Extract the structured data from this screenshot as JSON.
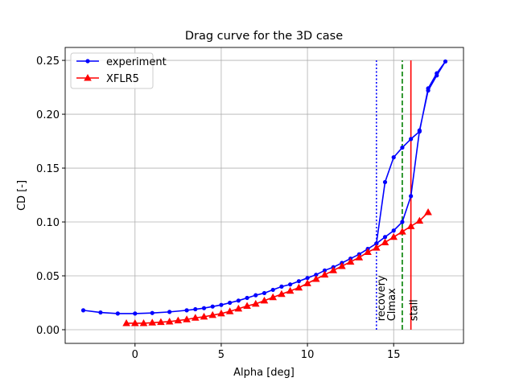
{
  "chart_data": {
    "type": "line",
    "title": "Drag curve for the 3D case",
    "xlabel": "Alpha [deg]",
    "ylabel": "CD [-]",
    "xlim": [
      -4.05,
      19.05
    ],
    "ylim": [
      -0.0127,
      0.262
    ],
    "xticks": [
      0,
      5,
      10,
      15
    ],
    "yticks": [
      {
        "value": 0,
        "label": "0.00"
      },
      {
        "value": 0.05,
        "label": "0.05"
      },
      {
        "value": 0.1,
        "label": "0.10"
      },
      {
        "value": 0.15,
        "label": "0.15"
      },
      {
        "value": 0.2,
        "label": "0.20"
      },
      {
        "value": 0.25,
        "label": "0.25"
      }
    ],
    "grid": true,
    "legend": "upper left",
    "series": [
      {
        "name": "experiment",
        "color": "#0000ff",
        "marker": "circle",
        "x": [
          -3,
          -2,
          -1,
          0,
          1,
          2,
          3,
          3.5,
          4,
          4.5,
          5,
          5.5,
          6,
          6.5,
          7,
          7.5,
          8,
          8.5,
          9,
          9.5,
          10,
          10.5,
          11,
          11.5,
          12,
          12.5,
          13,
          13.5,
          14,
          14.5,
          15,
          15.5,
          16,
          16.5,
          17,
          17.5,
          18,
          17.5,
          17,
          16.5,
          16,
          15.5,
          15,
          14.5,
          14
        ],
        "values": [
          0.018,
          0.016,
          0.015,
          0.015,
          0.0155,
          0.0165,
          0.018,
          0.019,
          0.02,
          0.0215,
          0.023,
          0.025,
          0.027,
          0.0295,
          0.032,
          0.034,
          0.037,
          0.04,
          0.042,
          0.045,
          0.048,
          0.051,
          0.055,
          0.058,
          0.062,
          0.066,
          0.07,
          0.075,
          0.08,
          0.137,
          0.16,
          0.169,
          0.177,
          0.184,
          0.224,
          0.238,
          0.249,
          0.236,
          0.222,
          0.185,
          0.124,
          0.1,
          0.092,
          0.086,
          0.08
        ]
      },
      {
        "name": "XFLR5",
        "color": "#ff0000",
        "marker": "triangle",
        "x": [
          -0.5,
          0,
          0.5,
          1,
          1.5,
          2,
          2.5,
          3,
          3.5,
          4,
          4.5,
          5,
          5.5,
          6,
          6.5,
          7,
          7.5,
          8,
          8.5,
          9,
          9.5,
          10,
          10.5,
          11,
          11.5,
          12,
          12.5,
          13,
          13.5,
          14,
          14.5,
          15,
          15.5,
          16,
          16.5,
          17
        ],
        "values": [
          0.006,
          0.006,
          0.006,
          0.0065,
          0.007,
          0.0075,
          0.0085,
          0.0095,
          0.011,
          0.012,
          0.0135,
          0.015,
          0.017,
          0.0195,
          0.022,
          0.024,
          0.027,
          0.03,
          0.033,
          0.036,
          0.039,
          0.043,
          0.047,
          0.051,
          0.055,
          0.059,
          0.063,
          0.067,
          0.072,
          0.076,
          0.081,
          0.086,
          0.091,
          0.096,
          0.101,
          0.109
        ]
      }
    ],
    "vlines": [
      {
        "x": 14,
        "ymin": 0,
        "ymax": 0.25,
        "label": "recovery",
        "color": "#0000ff",
        "style": "dotted"
      },
      {
        "x": 15.5,
        "ymin": 0,
        "ymax": 0.25,
        "label": "Clmax",
        "color": "#008000",
        "style": "dashed"
      },
      {
        "x": 16,
        "ymin": 0,
        "ymax": 0.25,
        "label": "stall",
        "color": "#ff0000",
        "style": "solid"
      }
    ]
  }
}
